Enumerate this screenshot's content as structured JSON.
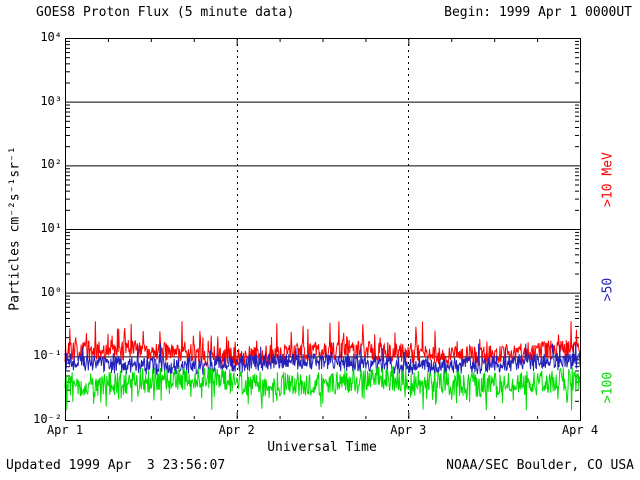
{
  "header": {
    "title": "GOES8 Proton Flux (5 minute data)",
    "begin_label": "Begin: 1999 Apr 1 0000UT"
  },
  "footer": {
    "updated": "Updated 1999 Apr  3 23:56:07",
    "credit": "NOAA/SEC Boulder, CO USA"
  },
  "chart_data": {
    "type": "line",
    "title": "GOES8 Proton Flux (5 minute data)",
    "xlabel": "Universal Time",
    "ylabel": "Particles cm⁻²s⁻¹sr⁻¹",
    "y_scale": "log10",
    "ylim": [
      0.01,
      10000
    ],
    "y_tick_exponents": [
      4,
      3,
      2,
      1,
      0,
      -1,
      -2
    ],
    "y_tick_labels": [
      "10⁴",
      "10³",
      "10²",
      "10¹",
      "10⁰",
      "10⁻¹",
      "10⁻²"
    ],
    "x_ticks": [
      "Apr 1",
      "Apr 2",
      "Apr 3",
      "Apr 4"
    ],
    "x_span_days": 3,
    "cadence_minutes": 5,
    "grid": {
      "horizontal": "solid",
      "vertical_day_lines": "dashed"
    },
    "legend_position": "right-rotated",
    "series": [
      {
        "name": ">10 MeV",
        "color": "#ff0000",
        "approx_median_flux": 0.11,
        "approx_range": [
          0.05,
          0.33
        ],
        "log10_median": -0.95,
        "log10_jitter": 0.16,
        "log10_slow": 0.05,
        "slow_period": 60,
        "spike_prob": 0.1,
        "spike_mag": 0.4,
        "spike_dir": 1,
        "log10_min": -1.35,
        "log10_max": -0.45,
        "points_per_day": 288,
        "days": 3
      },
      {
        "name": ">50",
        "color": "#2222bb",
        "approx_median_flux": 0.075,
        "approx_range": [
          0.035,
          0.16
        ],
        "log10_median": -1.12,
        "log10_jitter": 0.14,
        "log10_slow": 0.04,
        "slow_period": 70,
        "spike_prob": 0.08,
        "spike_mag": 0.3,
        "spike_dir": 1,
        "log10_min": -1.5,
        "log10_max": -0.8,
        "points_per_day": 288,
        "days": 3
      },
      {
        "name": ">100",
        "color": "#00dd00",
        "approx_median_flux": 0.04,
        "approx_range": [
          0.015,
          0.08
        ],
        "log10_median": -1.4,
        "log10_jitter": 0.2,
        "log10_slow": 0.05,
        "slow_period": 55,
        "spike_prob": 0.12,
        "spike_mag": 0.35,
        "spike_dir": -1,
        "log10_min": -1.85,
        "log10_max": -1.05,
        "points_per_day": 288,
        "days": 3
      }
    ]
  }
}
